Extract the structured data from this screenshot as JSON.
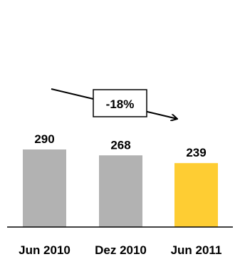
{
  "chart_data": {
    "type": "bar",
    "title": "",
    "xlabel": "",
    "ylabel": "",
    "categories": [
      "Jun 2010",
      "Dez 2010",
      "Jun 2011"
    ],
    "values": [
      290,
      268,
      239
    ],
    "ylim": [
      0,
      290
    ],
    "grid": false,
    "legend": "none",
    "colors": [
      "#b2b2b2",
      "#b2b2b2",
      "#fecd33"
    ],
    "axis_color": "#000000",
    "annotation": {
      "text": "-18%",
      "from": "Jun 2010",
      "to": "Jun 2011"
    }
  }
}
